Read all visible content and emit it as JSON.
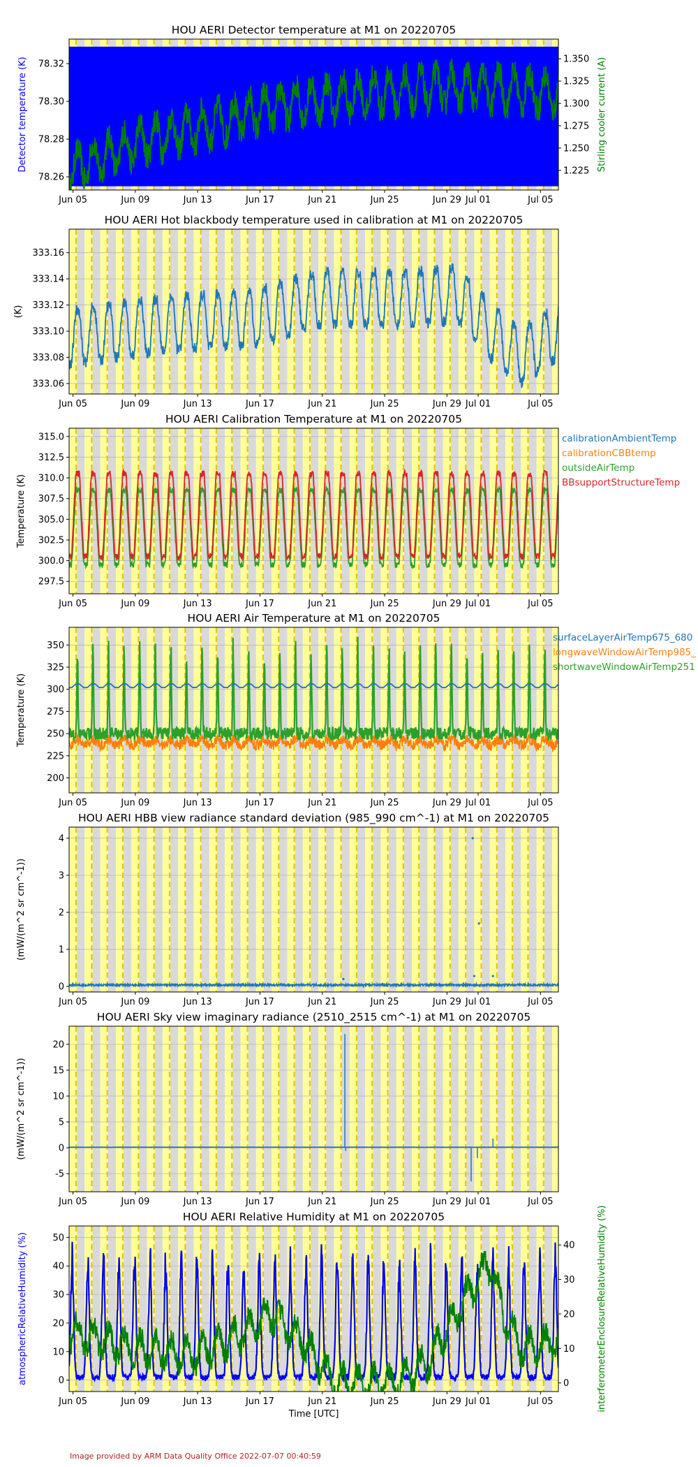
{
  "chart_data": [
    {
      "type": "line",
      "title": "HOU AERI Detector temperature at M1 on 20220705",
      "ylabel": "Detector temperature (K)",
      "ylabel_color": "#0000ff",
      "y2label": "Stirling cooler current (A)",
      "y2label_color": "#008000",
      "ylim": [
        78.253,
        78.333
      ],
      "yticks": [
        "78.26",
        "78.28",
        "78.30",
        "78.32"
      ],
      "y2lim": [
        1.203,
        1.372
      ],
      "y2ticks": [
        "1.225",
        "1.250",
        "1.275",
        "1.300",
        "1.325",
        "1.350"
      ],
      "x_tick_labels": [
        "Jun 05",
        "Jun 09",
        "Jun 13",
        "Jun 17",
        "Jun 21",
        "Jun 25",
        "Jun 29",
        "Jul 01",
        "Jul 05"
      ],
      "series": [
        {
          "axis": "left",
          "color": "#0000ff",
          "style": "band",
          "range": [
            78.255,
            78.329
          ]
        },
        {
          "axis": "right",
          "color": "#008000",
          "style": "noisy-trend",
          "trend": [
            [
              0,
              1.225
            ],
            [
              5,
              1.26
            ],
            [
              10,
              1.28
            ],
            [
              14,
              1.3
            ],
            [
              19,
              1.31
            ],
            [
              24,
              1.318
            ],
            [
              29,
              1.315
            ],
            [
              31.4,
              1.31
            ]
          ],
          "daily_amplitude": 0.03
        }
      ]
    },
    {
      "type": "line",
      "title": "HOU AERI Hot blackbody temperature used in calibration at M1 on 20220705",
      "ylabel": "(K)",
      "ylim": [
        333.052,
        333.178
      ],
      "yticks": [
        "333.06",
        "333.08",
        "333.10",
        "333.12",
        "333.14",
        "333.16"
      ],
      "x_tick_labels": [
        "Jun 05",
        "Jun 09",
        "Jun 13",
        "Jun 17",
        "Jun 21",
        "Jun 25",
        "Jun 29",
        "Jul 01",
        "Jul 05"
      ],
      "series": [
        {
          "color": "#1f77b4",
          "style": "diurnal",
          "trend": [
            [
              0,
              333.095
            ],
            [
              6,
              333.105
            ],
            [
              12,
              333.11
            ],
            [
              16,
              333.125
            ],
            [
              22,
              333.125
            ],
            [
              25,
              333.128
            ],
            [
              27,
              333.1
            ],
            [
              29,
              333.08
            ],
            [
              31.4,
              333.1
            ]
          ],
          "daily_amplitude": 0.025
        }
      ]
    },
    {
      "type": "line",
      "title": "HOU AERI Calibration Temperature at M1 on 20220705",
      "ylabel": "Temperature (K)",
      "ylim": [
        296.0,
        316.0
      ],
      "yticks": [
        "297.5",
        "300.0",
        "302.5",
        "305.0",
        "307.5",
        "310.0",
        "312.5",
        "315.0"
      ],
      "x_tick_labels": [
        "Jun 05",
        "Jun 09",
        "Jun 13",
        "Jun 17",
        "Jun 21",
        "Jun 25",
        "Jun 29",
        "Jul 01",
        "Jul 05"
      ],
      "legend": [
        "calibrationAmbientTemp",
        "calibrationCBBtemp",
        "outsideAirTemp",
        "BBsupportStructureTemp"
      ],
      "legend_colors": [
        "#1f77b4",
        "#ff7f0e",
        "#2ca02c",
        "#d62728"
      ],
      "series": [
        {
          "name": "outsideAirTemp",
          "color": "#2ca02c",
          "style": "diurnal",
          "base": 299.5,
          "daily_amplitude": 9.0
        },
        {
          "name": "BBsupportStructureTemp",
          "color": "#d62728",
          "style": "diurnal",
          "base": 300.5,
          "daily_amplitude": 10.0
        }
      ]
    },
    {
      "type": "line",
      "title": "HOU AERI Air Temperature at M1 on 20220705",
      "ylabel": "Temperature (K)",
      "ylim": [
        183,
        370
      ],
      "yticks": [
        "200",
        "225",
        "250",
        "275",
        "300",
        "325",
        "350"
      ],
      "x_tick_labels": [
        "Jun 05",
        "Jun 09",
        "Jun 13",
        "Jun 17",
        "Jun 21",
        "Jun 25",
        "Jun 29",
        "Jul 01",
        "Jul 05"
      ],
      "legend": [
        "surfaceLayerAirTemp675_680",
        "longwaveWindowAirTemp985_",
        "shortwaveWindowAirTemp251"
      ],
      "legend_colors": [
        "#1f77b4",
        "#ff7f0e",
        "#2ca02c"
      ],
      "series": [
        {
          "name": "longwaveWindowAirTemp985_",
          "color": "#ff7f0e",
          "style": "band-noisy",
          "base": 240,
          "spread": 10
        },
        {
          "name": "shortwaveWindowAirTemp251",
          "color": "#2ca02c",
          "style": "spiky",
          "base": 250,
          "peak": 360
        },
        {
          "name": "surfaceLayerAirTemp675_680",
          "color": "#1f77b4",
          "style": "diurnal",
          "base": 302,
          "daily_amplitude": 4
        }
      ]
    },
    {
      "type": "line",
      "title": "HOU AERI HBB view radiance standard deviation (985_990 cm^-1) at M1 on 20220705",
      "ylabel": "(mW/(m^2 sr cm^-1))",
      "ylim": [
        -0.15,
        4.3
      ],
      "yticks": [
        "0",
        "1",
        "2",
        "3",
        "4"
      ],
      "x_tick_labels": [
        "Jun 05",
        "Jun 09",
        "Jun 13",
        "Jun 17",
        "Jun 21",
        "Jun 25",
        "Jun 29",
        "Jul 01",
        "Jul 05"
      ],
      "series": [
        {
          "color": "#1f77b4",
          "style": "flat",
          "base": 0.04,
          "outliers": [
            [
              17.6,
              0.2
            ],
            [
              25.9,
              4.0
            ],
            [
              26.3,
              1.7
            ],
            [
              26.0,
              0.28
            ],
            [
              27.2,
              0.28
            ]
          ]
        }
      ]
    },
    {
      "type": "line",
      "title": "HOU AERI Sky view imaginary radiance (2510_2515 cm^-1) at M1 on 20220705",
      "ylabel": "(mW/(m^2 sr cm^-1))",
      "ylim": [
        -8.5,
        23.5
      ],
      "yticks": [
        "-5",
        "0",
        "5",
        "10",
        "15",
        "20"
      ],
      "x_tick_labels": [
        "Jun 05",
        "Jun 09",
        "Jun 13",
        "Jun 17",
        "Jun 21",
        "Jun 25",
        "Jun 29",
        "Jul 01",
        "Jul 05"
      ],
      "series": [
        {
          "color": "#1f77b4",
          "style": "flat",
          "base": 0.1,
          "spikes": [
            [
              17.7,
              22.0
            ],
            [
              17.75,
              -0.6
            ],
            [
              25.8,
              -6.5
            ],
            [
              26.2,
              -2.0
            ],
            [
              27.2,
              1.8
            ]
          ]
        }
      ]
    },
    {
      "type": "line",
      "title": "HOU AERI Relative Humidity at M1 on 20220705",
      "xlabel": "Time [UTC]",
      "ylabel": "atmosphericRelativeHumidity (%)",
      "ylabel_color": "#0000ff",
      "y2label": "interferometerEnclosureRelativeHumidity (%)",
      "y2label_color": "#008000",
      "ylim": [
        -4,
        54
      ],
      "yticks": [
        "0",
        "10",
        "20",
        "30",
        "40",
        "50"
      ],
      "y2lim": [
        -2.5,
        45.5
      ],
      "y2ticks": [
        "0",
        "10",
        "20",
        "30",
        "40"
      ],
      "x_tick_labels": [
        "Jun 05",
        "Jun 09",
        "Jun 13",
        "Jun 17",
        "Jun 21",
        "Jun 25",
        "Jun 29",
        "Jul 01",
        "Jul 05"
      ],
      "series": [
        {
          "axis": "left",
          "color": "#0000ff",
          "style": "diurnal-pulses",
          "base": 0,
          "peak": 45
        },
        {
          "axis": "right",
          "color": "#008000",
          "style": "noisy-trend",
          "trend": [
            [
              0,
              15
            ],
            [
              4,
              10
            ],
            [
              8,
              8
            ],
            [
              11,
              14
            ],
            [
              13,
              20
            ],
            [
              15,
              12
            ],
            [
              17,
              0
            ],
            [
              21,
              0
            ],
            [
              23,
              6
            ],
            [
              25.5,
              25
            ],
            [
              27,
              35
            ],
            [
              28,
              18
            ],
            [
              29,
              10
            ],
            [
              31.4,
              12
            ]
          ],
          "daily_amplitude": 6
        }
      ]
    }
  ],
  "footer": "Image provided by ARM Data Quality Office 2022-07-07 00:40:59",
  "colors": {
    "day_band": "#d9d9d9",
    "night_band": "#ffff99",
    "dashed_line": "#e6c800"
  }
}
